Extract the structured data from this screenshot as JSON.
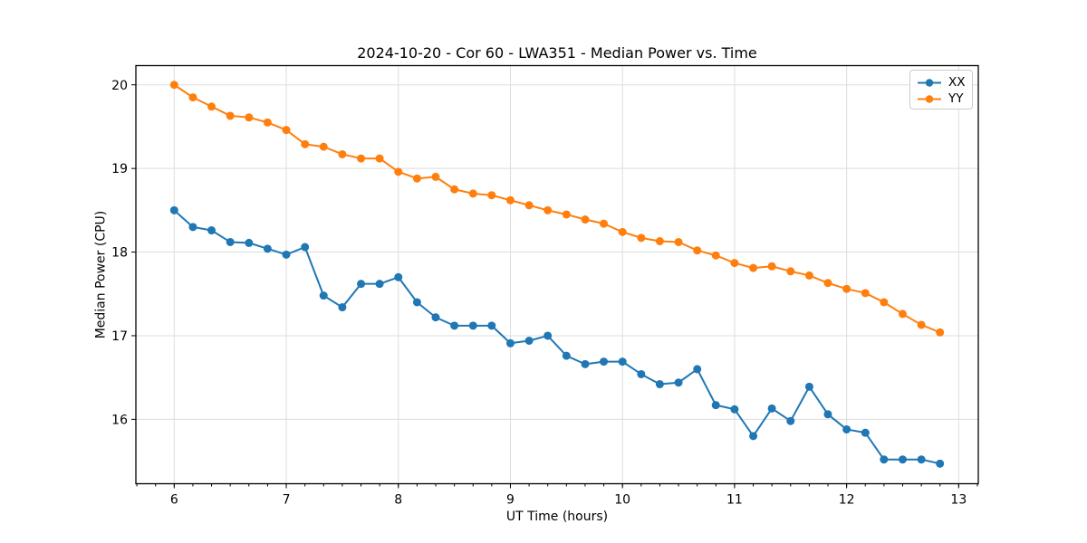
{
  "chart_data": {
    "type": "line",
    "title": "2024-10-20 - Cor 60 - LWA351 - Median Power vs. Time",
    "xlabel": "UT Time (hours)",
    "ylabel": "Median Power (CPU)",
    "xlim": [
      5.658,
      13.175
    ],
    "ylim": [
      15.23,
      20.23
    ],
    "xticks": [
      6,
      7,
      8,
      9,
      10,
      11,
      12,
      13
    ],
    "yticks": [
      16,
      17,
      18,
      19,
      20
    ],
    "x_minor_interval": 0.166667,
    "grid": true,
    "legend_position": "upper right",
    "colors": {
      "grid": "#dddddd",
      "axis": "#000000",
      "background": "#ffffff"
    },
    "x": [
      6.0,
      6.167,
      6.333,
      6.5,
      6.667,
      6.833,
      7.0,
      7.167,
      7.333,
      7.5,
      7.667,
      7.833,
      8.0,
      8.167,
      8.333,
      8.5,
      8.667,
      8.833,
      9.0,
      9.167,
      9.333,
      9.5,
      9.667,
      9.833,
      10.0,
      10.167,
      10.333,
      10.5,
      10.667,
      10.833,
      11.0,
      11.167,
      11.333,
      11.5,
      11.667,
      11.833,
      12.0,
      12.167,
      12.333,
      12.5,
      12.667,
      12.833
    ],
    "series": [
      {
        "name": "XX",
        "color": "#1f77b4",
        "values": [
          18.5,
          18.3,
          18.26,
          18.12,
          18.11,
          18.04,
          17.97,
          18.06,
          17.48,
          17.34,
          17.62,
          17.62,
          17.7,
          17.4,
          17.22,
          17.12,
          17.12,
          17.12,
          16.91,
          16.94,
          17.0,
          16.76,
          16.66,
          16.69,
          16.69,
          16.54,
          16.42,
          16.44,
          16.6,
          16.17,
          16.12,
          15.8,
          16.13,
          15.98,
          16.39,
          16.06,
          15.88,
          15.84,
          15.52,
          15.52,
          15.52,
          15.47
        ]
      },
      {
        "name": "YY",
        "color": "#ff7f0e",
        "values": [
          20.0,
          19.85,
          19.74,
          19.63,
          19.61,
          19.55,
          19.46,
          19.29,
          19.26,
          19.17,
          19.12,
          19.12,
          18.96,
          18.88,
          18.9,
          18.75,
          18.7,
          18.68,
          18.62,
          18.56,
          18.5,
          18.45,
          18.39,
          18.34,
          18.24,
          18.17,
          18.13,
          18.12,
          18.02,
          17.96,
          17.87,
          17.81,
          17.83,
          17.77,
          17.72,
          17.63,
          17.56,
          17.51,
          17.4,
          17.26,
          17.13,
          17.04
        ]
      }
    ]
  }
}
